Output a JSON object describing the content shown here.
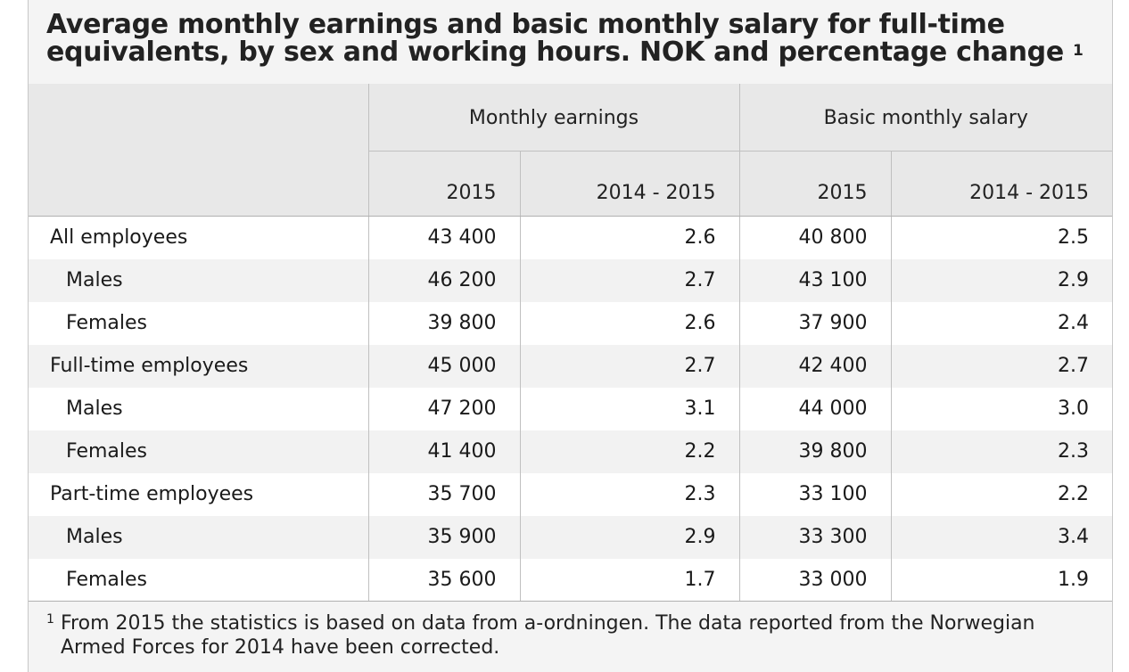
{
  "title": {
    "text": "Average monthly earnings and basic monthly salary for full-time equivalents, by sex and working hours. NOK and percentage change",
    "footnote_ref": "1"
  },
  "table": {
    "groups": [
      "Monthly earnings",
      "Basic monthly salary"
    ],
    "subheaders": [
      "2015",
      "2014 - 2015",
      "2015",
      "2014 - 2015"
    ],
    "rows": [
      {
        "label": "All employees",
        "indent": false,
        "values": [
          "43 400",
          "2.6",
          "40 800",
          "2.5"
        ]
      },
      {
        "label": "Males",
        "indent": true,
        "values": [
          "46 200",
          "2.7",
          "43 100",
          "2.9"
        ]
      },
      {
        "label": "Females",
        "indent": true,
        "values": [
          "39 800",
          "2.6",
          "37 900",
          "2.4"
        ]
      },
      {
        "label": "Full-time employees",
        "indent": false,
        "values": [
          "45 000",
          "2.7",
          "42 400",
          "2.7"
        ]
      },
      {
        "label": "Males",
        "indent": true,
        "values": [
          "47 200",
          "3.1",
          "44 000",
          "3.0"
        ]
      },
      {
        "label": "Females",
        "indent": true,
        "values": [
          "41 400",
          "2.2",
          "39 800",
          "2.3"
        ]
      },
      {
        "label": "Part-time employees",
        "indent": false,
        "values": [
          "35 700",
          "2.3",
          "33 100",
          "2.2"
        ]
      },
      {
        "label": "Males",
        "indent": true,
        "values": [
          "35 900",
          "2.9",
          "33 300",
          "3.4"
        ]
      },
      {
        "label": "Females",
        "indent": true,
        "values": [
          "35 600",
          "1.7",
          "33 000",
          "1.9"
        ]
      }
    ]
  },
  "footnote": {
    "mark": "1",
    "text": "From 2015 the statistics is based on data from a-ordningen. The data reported from the Norwegian Armed Forces for 2014 have been corrected."
  }
}
